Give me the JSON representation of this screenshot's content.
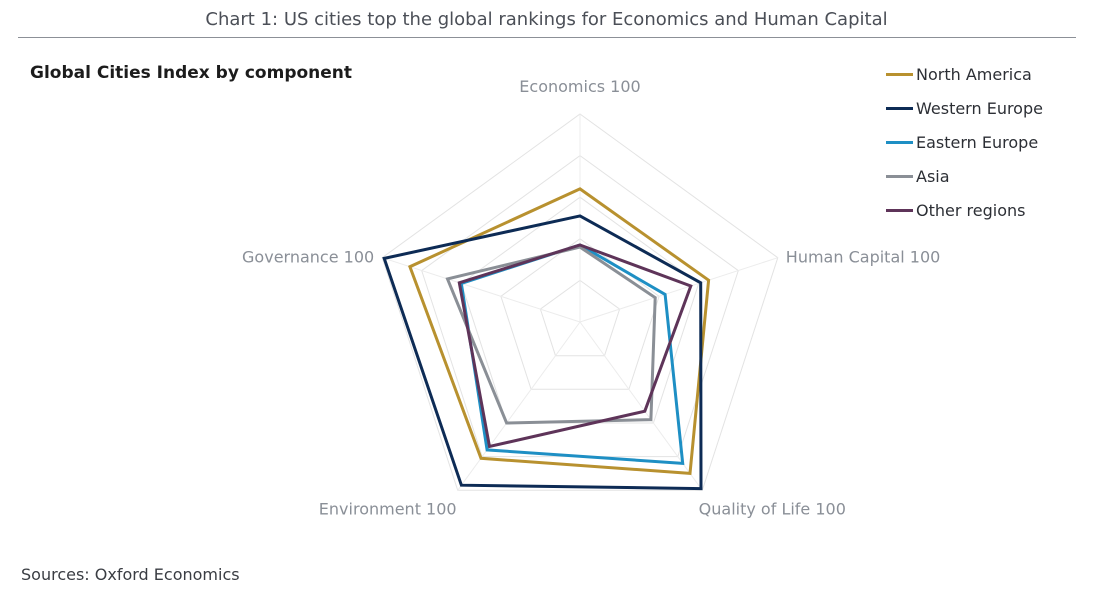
{
  "header": {
    "title": "Chart 1: US cities top the global rankings for Economics and Human Capital"
  },
  "footer": {
    "source": "Sources: Oxford Economics"
  },
  "chart_data": {
    "type": "radar",
    "title": "Chart 1: US cities top the global rankings for Economics and Human Capital",
    "subtitle": "Global Cities Index by component",
    "axes": [
      {
        "name": "Economics",
        "label": "Economics 100"
      },
      {
        "name": "Human Capital",
        "label": "Human Capital 100"
      },
      {
        "name": "Quality of Life",
        "label": "Quality of Life 100"
      },
      {
        "name": "Environment",
        "label": "Environment 100"
      },
      {
        "name": "Governance",
        "label": "Governance 100"
      }
    ],
    "rlim": [
      0,
      100
    ],
    "grid_levels": [
      20,
      40,
      60,
      80,
      100
    ],
    "grid": true,
    "legend_position": "top-right",
    "series": [
      {
        "name": "North America",
        "color": "#B8912F",
        "values": [
          64,
          65,
          90,
          81,
          86
        ]
      },
      {
        "name": "Western Europe",
        "color": "#0D2B55",
        "values": [
          51,
          61,
          99,
          97,
          99
        ]
      },
      {
        "name": "Eastern Europe",
        "color": "#1E8FC4",
        "values": [
          37,
          43,
          84,
          76,
          60
        ]
      },
      {
        "name": "Asia",
        "color": "#8A8F96",
        "values": [
          36,
          38,
          58,
          60,
          67
        ]
      },
      {
        "name": "Other regions",
        "color": "#5E3459",
        "values": [
          37,
          56,
          53,
          74,
          61
        ]
      }
    ]
  }
}
